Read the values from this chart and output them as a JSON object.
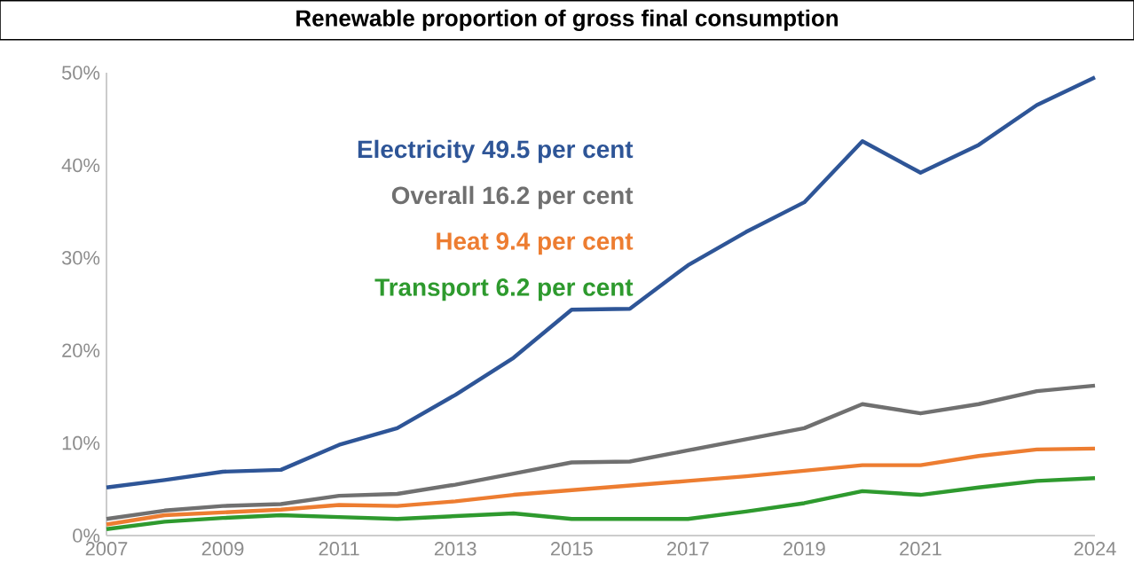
{
  "chart_data": {
    "type": "line",
    "title": "Renewable proportion of gross final consumption",
    "x": [
      2007,
      2008,
      2009,
      2010,
      2011,
      2012,
      2013,
      2014,
      2015,
      2016,
      2017,
      2018,
      2019,
      2020,
      2021,
      2022,
      2023,
      2024
    ],
    "series": [
      {
        "name": "Electricity 49.5 per cent",
        "color": "#2e5597",
        "values": [
          5.2,
          6.0,
          6.9,
          7.1,
          9.8,
          11.6,
          15.2,
          19.2,
          24.4,
          24.5,
          29.2,
          32.8,
          36.0,
          42.6,
          39.2,
          42.2,
          46.5,
          49.5
        ]
      },
      {
        "name": "Overall 16.2 per cent",
        "color": "#707070",
        "values": [
          1.8,
          2.7,
          3.2,
          3.4,
          4.3,
          4.5,
          5.5,
          6.7,
          7.9,
          8.0,
          9.2,
          10.4,
          11.6,
          14.2,
          13.2,
          14.2,
          15.6,
          16.2
        ]
      },
      {
        "name": "Heat 9.4 per cent",
        "color": "#ed7d31",
        "values": [
          1.2,
          2.2,
          2.5,
          2.8,
          3.3,
          3.2,
          3.7,
          4.4,
          4.9,
          5.4,
          5.9,
          6.4,
          7.0,
          7.6,
          7.6,
          8.6,
          9.3,
          9.4
        ]
      },
      {
        "name": "Transport 6.2 per cent",
        "color": "#2e9a2e",
        "values": [
          0.7,
          1.5,
          1.9,
          2.2,
          2.0,
          1.8,
          2.1,
          2.4,
          1.8,
          1.8,
          1.8,
          2.6,
          3.5,
          4.8,
          4.4,
          5.2,
          5.9,
          6.2
        ]
      }
    ],
    "xlim": [
      2007,
      2024
    ],
    "xticks": [
      2007,
      2009,
      2011,
      2013,
      2015,
      2017,
      2019,
      2021,
      2024
    ],
    "ylim": [
      0,
      50
    ],
    "yticks": [
      {
        "value": 0,
        "label": "0%"
      },
      {
        "value": 10,
        "label": "10%"
      },
      {
        "value": 20,
        "label": "20%"
      },
      {
        "value": 30,
        "label": "30%"
      },
      {
        "value": 40,
        "label": "40%"
      },
      {
        "value": 50,
        "label": "50%"
      }
    ],
    "grid": false,
    "legend": "top left",
    "marker": "none",
    "line_style": "solid"
  }
}
